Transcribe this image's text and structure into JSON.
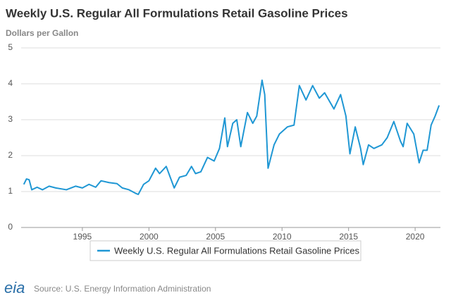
{
  "chart_data": {
    "type": "line",
    "title": "Weekly U.S. Regular All Formulations Retail Gasoline Prices",
    "y_label": "Dollars per Gallon",
    "source": "Source: U.S. Energy Information Administration",
    "logo": "eia",
    "x": [
      1990.6,
      1990.8,
      1991.0,
      1991.2,
      1991.6,
      1992.0,
      1992.5,
      1993.0,
      1993.8,
      1994.5,
      1995.0,
      1995.5,
      1996.0,
      1996.4,
      1997.0,
      1997.6,
      1998.0,
      1998.5,
      1999.0,
      1999.2,
      1999.6,
      2000.0,
      2000.5,
      2000.8,
      2001.3,
      2001.6,
      2001.9,
      2002.3,
      2002.8,
      2003.2,
      2003.5,
      2003.9,
      2004.4,
      2004.9,
      2005.3,
      2005.7,
      2005.9,
      2006.3,
      2006.6,
      2006.9,
      2007.4,
      2007.8,
      2008.1,
      2008.5,
      2008.7,
      2008.95,
      2009.4,
      2009.8,
      2010.4,
      2010.9,
      2011.3,
      2011.8,
      2012.3,
      2012.8,
      2013.2,
      2013.9,
      2014.4,
      2014.8,
      2015.1,
      2015.5,
      2015.9,
      2016.1,
      2016.5,
      2016.9,
      2017.5,
      2017.9,
      2018.4,
      2018.9,
      2019.1,
      2019.4,
      2019.9,
      2020.3,
      2020.6,
      2020.9,
      2021.2,
      2021.5,
      2021.8
    ],
    "series": [
      {
        "name": "Weekly U.S. Regular All Formulations Retail Gasoline Prices",
        "color": "#1f97d4",
        "values": [
          1.2,
          1.35,
          1.33,
          1.05,
          1.12,
          1.05,
          1.15,
          1.1,
          1.05,
          1.15,
          1.1,
          1.2,
          1.12,
          1.3,
          1.25,
          1.22,
          1.1,
          1.05,
          0.95,
          0.92,
          1.2,
          1.3,
          1.65,
          1.5,
          1.7,
          1.4,
          1.1,
          1.4,
          1.45,
          1.7,
          1.5,
          1.55,
          1.95,
          1.85,
          2.2,
          3.05,
          2.25,
          2.9,
          3.0,
          2.25,
          3.2,
          2.9,
          3.1,
          4.1,
          3.7,
          1.65,
          2.3,
          2.6,
          2.8,
          2.85,
          3.95,
          3.55,
          3.95,
          3.6,
          3.75,
          3.3,
          3.7,
          3.1,
          2.05,
          2.8,
          2.2,
          1.75,
          2.3,
          2.2,
          2.3,
          2.5,
          2.95,
          2.4,
          2.25,
          2.9,
          2.6,
          1.8,
          2.15,
          2.15,
          2.85,
          3.1,
          3.4
        ]
      }
    ],
    "xlim": [
      1990.4,
      2021.9
    ],
    "xticks": [
      1995,
      2000,
      2005,
      2010,
      2015,
      2020
    ],
    "ylim": [
      0,
      5
    ],
    "yticks": [
      0,
      1,
      2,
      3,
      4,
      5
    ],
    "grid": true
  }
}
